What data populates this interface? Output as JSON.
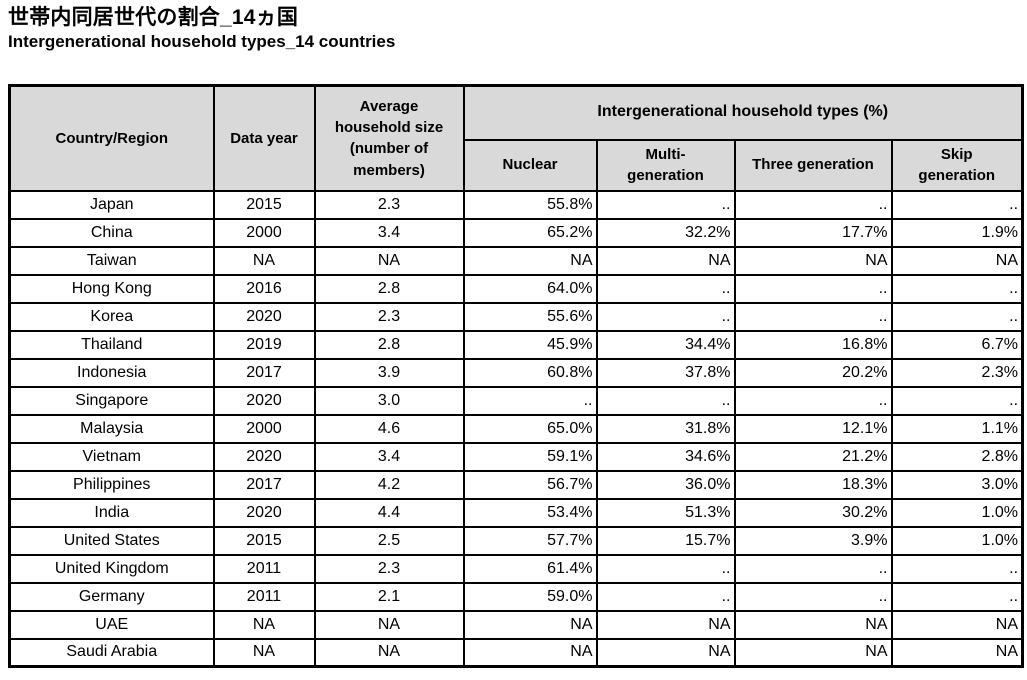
{
  "page": {
    "title_ja": "世帯内同居世代の割合_14ヵ国",
    "title_en": "Intergenerational household types_14 countries"
  },
  "table": {
    "colors": {
      "header_bg": "#D9D9D9",
      "border": "#000000"
    },
    "headers": {
      "country": "Country/Region",
      "year": "Data year",
      "avg_size": "Average\nhousehold size\n(number of\nmembers)",
      "group": "Intergenerational household types (%)",
      "nuclear": "Nuclear",
      "multi": "Multi-\ngeneration",
      "three": "Three generation",
      "skip": "Skip\ngeneration"
    },
    "missing_marker": "..",
    "na_marker": "NA",
    "rows": [
      {
        "country": "Japan",
        "year": "2015",
        "size": "2.3",
        "nuclear": "55.8%",
        "multi": "..",
        "three": "..",
        "skip": ".."
      },
      {
        "country": "China",
        "year": "2000",
        "size": "3.4",
        "nuclear": "65.2%",
        "multi": "32.2%",
        "three": "17.7%",
        "skip": "1.9%"
      },
      {
        "country": "Taiwan",
        "year": "NA",
        "size": "NA",
        "nuclear": "NA",
        "multi": "NA",
        "three": "NA",
        "skip": "NA"
      },
      {
        "country": "Hong Kong",
        "year": "2016",
        "size": "2.8",
        "nuclear": "64.0%",
        "multi": "..",
        "three": "..",
        "skip": ".."
      },
      {
        "country": "Korea",
        "year": "2020",
        "size": "2.3",
        "nuclear": "55.6%",
        "multi": "..",
        "three": "..",
        "skip": ".."
      },
      {
        "country": "Thailand",
        "year": "2019",
        "size": "2.8",
        "nuclear": "45.9%",
        "multi": "34.4%",
        "three": "16.8%",
        "skip": "6.7%"
      },
      {
        "country": "Indonesia",
        "year": "2017",
        "size": "3.9",
        "nuclear": "60.8%",
        "multi": "37.8%",
        "three": "20.2%",
        "skip": "2.3%"
      },
      {
        "country": "Singapore",
        "year": "2020",
        "size": "3.0",
        "nuclear": "..",
        "multi": "..",
        "three": "..",
        "skip": ".."
      },
      {
        "country": "Malaysia",
        "year": "2000",
        "size": "4.6",
        "nuclear": "65.0%",
        "multi": "31.8%",
        "three": "12.1%",
        "skip": "1.1%"
      },
      {
        "country": "Vietnam",
        "year": "2020",
        "size": "3.4",
        "nuclear": "59.1%",
        "multi": "34.6%",
        "three": "21.2%",
        "skip": "2.8%"
      },
      {
        "country": "Philippines",
        "year": "2017",
        "size": "4.2",
        "nuclear": "56.7%",
        "multi": "36.0%",
        "three": "18.3%",
        "skip": "3.0%"
      },
      {
        "country": "India",
        "year": "2020",
        "size": "4.4",
        "nuclear": "53.4%",
        "multi": "51.3%",
        "three": "30.2%",
        "skip": "1.0%"
      },
      {
        "country": "United States",
        "year": "2015",
        "size": "2.5",
        "nuclear": "57.7%",
        "multi": "15.7%",
        "three": "3.9%",
        "skip": "1.0%"
      },
      {
        "country": "United Kingdom",
        "year": "2011",
        "size": "2.3",
        "nuclear": "61.4%",
        "multi": "..",
        "three": "..",
        "skip": ".."
      },
      {
        "country": "Germany",
        "year": "2011",
        "size": "2.1",
        "nuclear": "59.0%",
        "multi": "..",
        "three": "..",
        "skip": ".."
      },
      {
        "country": "UAE",
        "year": "NA",
        "size": "NA",
        "nuclear": "NA",
        "multi": "NA",
        "three": "NA",
        "skip": "NA"
      },
      {
        "country": "Saudi Arabia",
        "year": "NA",
        "size": "NA",
        "nuclear": "NA",
        "multi": "NA",
        "three": "NA",
        "skip": "NA"
      }
    ]
  }
}
